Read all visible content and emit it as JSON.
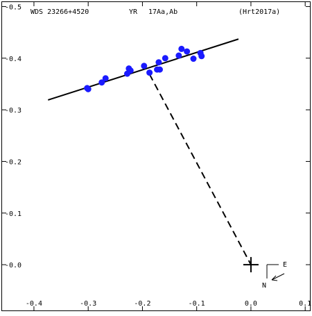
{
  "header": {
    "id": "WDS 23266+4520",
    "label": "YR",
    "pair": "17Aa,Ab",
    "reference": "(Hrt2017a)"
  },
  "compass": {
    "east_label": "E",
    "north_label": "N"
  },
  "chart_data": {
    "type": "scatter",
    "title": "WDS 23266+4520   YR   17Aa,Ab   (Hrt2017a)",
    "xlabel": "",
    "ylabel": "",
    "xlim": [
      -0.46,
      0.11
    ],
    "ylim": [
      -0.09,
      0.51
    ],
    "x_ticks": [
      -0.4,
      -0.3,
      -0.2,
      -0.1,
      0.0,
      0.1
    ],
    "x_tick_labels": [
      "-0.4",
      "-0.3",
      "-0.2",
      "-0.1",
      "0.0",
      "0.1"
    ],
    "y_ticks": [
      0.5,
      0.4,
      0.3,
      0.2,
      0.1,
      0.0
    ],
    "y_tick_labels": [
      "-0.5",
      "-0.4",
      "-0.3",
      "-0.2",
      "-0.1",
      "-0.0"
    ],
    "grid": false,
    "orbit_line": {
      "x": [
        -0.374,
        -0.023
      ],
      "y": [
        0.319,
        0.437
      ]
    },
    "periastron_line": {
      "x": [
        -0.187,
        0.0
      ],
      "y": [
        0.369,
        0.0
      ]
    },
    "primary": {
      "x": 0.0,
      "y": 0.0
    },
    "points_color": "#1a1aff",
    "points": [
      {
        "x": -0.302,
        "y": 0.342
      },
      {
        "x": -0.3,
        "y": 0.34
      },
      {
        "x": -0.275,
        "y": 0.353
      },
      {
        "x": -0.268,
        "y": 0.361
      },
      {
        "x": -0.228,
        "y": 0.37
      },
      {
        "x": -0.225,
        "y": 0.38
      },
      {
        "x": -0.222,
        "y": 0.376
      },
      {
        "x": -0.197,
        "y": 0.385
      },
      {
        "x": -0.187,
        "y": 0.372
      },
      {
        "x": -0.173,
        "y": 0.378
      },
      {
        "x": -0.17,
        "y": 0.392
      },
      {
        "x": -0.168,
        "y": 0.378
      },
      {
        "x": -0.158,
        "y": 0.4
      },
      {
        "x": -0.133,
        "y": 0.405
      },
      {
        "x": -0.128,
        "y": 0.418
      },
      {
        "x": -0.118,
        "y": 0.413
      },
      {
        "x": -0.106,
        "y": 0.399
      },
      {
        "x": -0.093,
        "y": 0.41
      },
      {
        "x": -0.091,
        "y": 0.404
      }
    ]
  }
}
